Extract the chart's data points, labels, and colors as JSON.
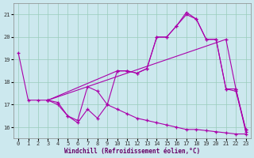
{
  "xlabel": "Windchill (Refroidissement éolien,°C)",
  "bg_color": "#cce8ee",
  "grid_color": "#99ccbb",
  "line_color": "#aa00aa",
  "xlim": [
    -0.5,
    23.5
  ],
  "ylim": [
    15.5,
    21.5
  ],
  "xticks": [
    0,
    1,
    2,
    3,
    4,
    5,
    6,
    7,
    8,
    9,
    10,
    11,
    12,
    13,
    14,
    15,
    16,
    17,
    18,
    19,
    20,
    21,
    22,
    23
  ],
  "yticks": [
    16,
    17,
    18,
    19,
    20,
    21
  ],
  "series": [
    {
      "x": [
        0,
        1,
        2,
        3,
        4,
        5,
        6,
        7,
        8,
        9,
        10,
        11,
        12,
        13,
        14,
        15,
        16,
        17,
        18,
        19,
        20,
        21,
        22,
        23
      ],
      "y": [
        19.3,
        17.2,
        17.2,
        17.2,
        17.1,
        16.5,
        16.3,
        17.8,
        17.6,
        17.0,
        18.5,
        18.5,
        18.4,
        18.6,
        20.0,
        20.0,
        20.5,
        21.0,
        20.8,
        19.9,
        19.9,
        17.7,
        17.6,
        15.9
      ]
    },
    {
      "x": [
        3,
        10,
        11,
        12,
        13,
        14,
        15,
        16,
        17,
        18,
        19,
        20,
        21,
        22,
        23
      ],
      "y": [
        17.2,
        18.5,
        18.5,
        18.4,
        18.6,
        20.0,
        20.0,
        20.5,
        21.1,
        20.8,
        19.9,
        19.9,
        17.7,
        17.7,
        15.9
      ]
    },
    {
      "x": [
        3,
        4,
        5,
        6,
        7,
        8,
        9,
        10,
        11,
        12,
        13,
        14,
        15,
        16,
        17,
        18,
        19,
        20,
        21,
        22,
        23
      ],
      "y": [
        17.2,
        17.0,
        16.5,
        16.2,
        16.8,
        16.4,
        17.0,
        16.8,
        16.6,
        16.4,
        16.3,
        16.2,
        16.1,
        16.0,
        15.9,
        15.9,
        15.85,
        15.8,
        15.75,
        15.7,
        15.7
      ]
    },
    {
      "x": [
        3,
        21,
        22,
        23
      ],
      "y": [
        17.2,
        19.9,
        17.7,
        15.8
      ]
    }
  ]
}
